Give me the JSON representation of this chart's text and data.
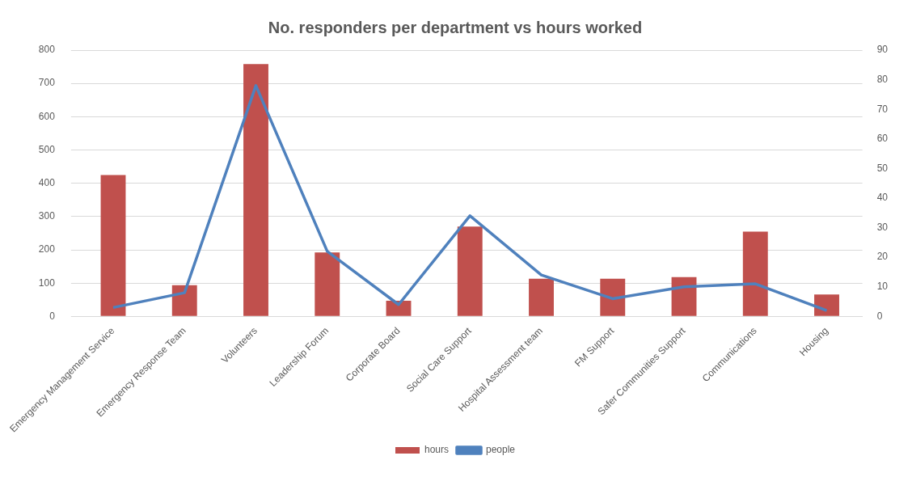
{
  "chart_data": {
    "type": "bar",
    "title": "No. responders per department vs hours worked",
    "categories": [
      "Emergency Management Service",
      "Emergency Response Team",
      "Volunteers",
      "Leadership Forum",
      "Corporate Board",
      "Social Care Support",
      "Hospital Assessment team",
      "FM Support",
      "Safer Communities Support",
      "Communications",
      "Housing"
    ],
    "series": [
      {
        "name": "hours",
        "color": "#c0504d",
        "values": [
          425,
          94,
          758,
          192,
          47,
          270,
          113,
          113,
          118,
          255,
          66
        ]
      },
      {
        "name": "people",
        "type": "line",
        "axis": "y2",
        "color": "#4f81bd",
        "values": [
          3,
          8,
          78,
          22,
          4,
          34,
          14,
          6,
          10,
          11,
          2
        ]
      }
    ],
    "ylim": [
      0,
      800
    ],
    "yticks": [
      0,
      100,
      200,
      300,
      400,
      500,
      600,
      700,
      800
    ],
    "y2lim": [
      0,
      90
    ],
    "y2ticks": [
      0,
      10,
      20,
      30,
      40,
      50,
      60,
      70,
      80,
      90
    ],
    "grid": "y",
    "legend": "bottom",
    "marker": "none"
  }
}
